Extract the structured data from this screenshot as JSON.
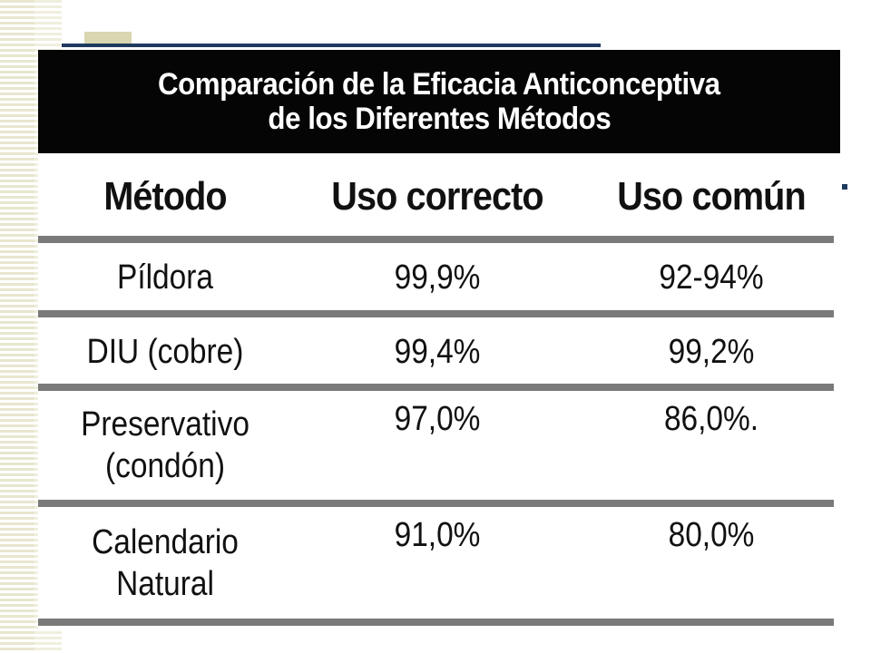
{
  "title": {
    "line1": "Comparación de la Eficacia Anticonceptiva",
    "line2": "de los Diferentes Métodos"
  },
  "columns": [
    "Método",
    "Uso correcto",
    "Uso común"
  ],
  "rows": [
    {
      "method_line1": "Píldora",
      "method_line2": "",
      "correct": "99,9%",
      "common": "92-94%"
    },
    {
      "method_line1": "DIU (cobre)",
      "method_line2": "",
      "correct": "99,4%",
      "common": "99,2%"
    },
    {
      "method_line1": "Preservativo",
      "method_line2": "(condón)",
      "correct": "97,0%",
      "common": "86,0%."
    },
    {
      "method_line1": "Calendario",
      "method_line2": "Natural",
      "correct": "91,0%",
      "common": "80,0%"
    }
  ],
  "colors": {
    "title_background": "#050505",
    "title_text": "#ffffff",
    "rule": "#7a7a7a",
    "accent_navy": "#1f3a5f",
    "stripe_beige": "#e6e3c8"
  }
}
